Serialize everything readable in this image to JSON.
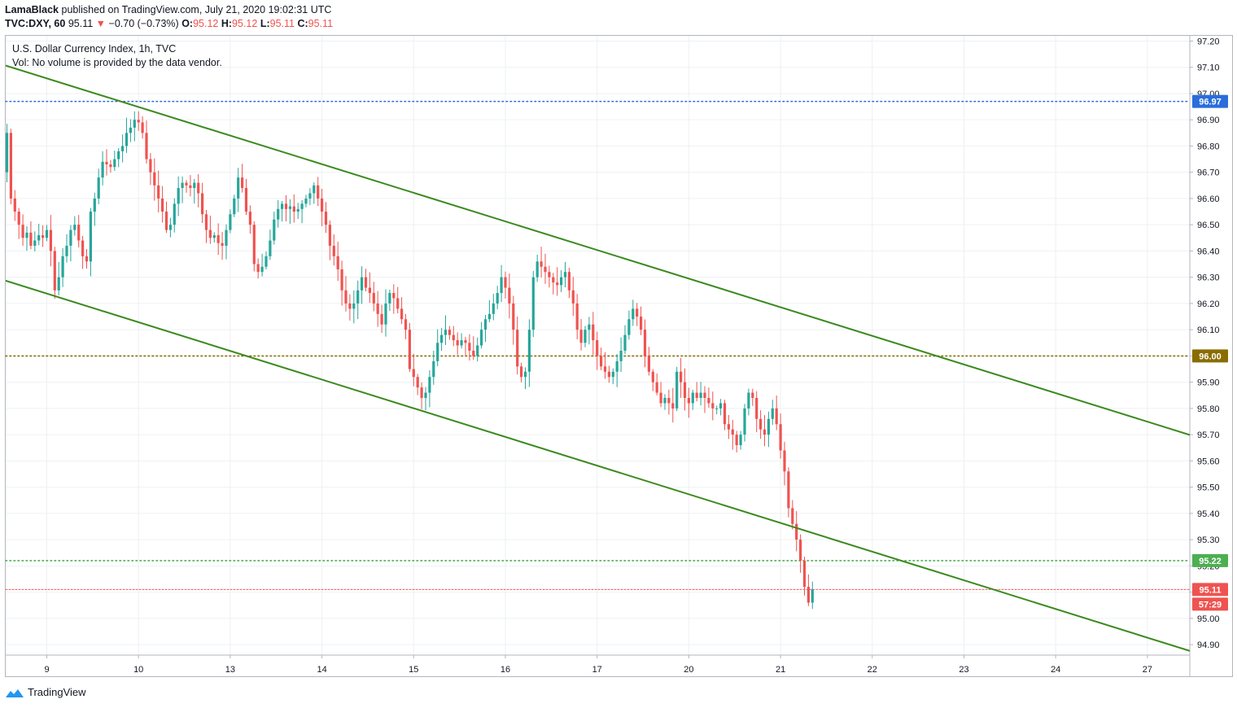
{
  "header": {
    "author": "LamaBlack",
    "published_text": "published on TradingView.com, July 21, 2020 19:02:31 UTC",
    "symbol": "TVC:DXY, 60",
    "last": "95.11",
    "change": "−0.70 (−0.73%)",
    "o_label": "O:",
    "o_value": "95.12",
    "h_label": "H:",
    "h_value": "95.12",
    "l_label": "L:",
    "l_value": "95.11",
    "c_label": "C:",
    "c_value": "95.11"
  },
  "legend": {
    "title": "U.S. Dollar Currency Index, 1h, TVC",
    "vol": "Vol: No volume is provided by the data vendor."
  },
  "footer": {
    "brand": "TradingView"
  },
  "colors": {
    "up": "#26a69a",
    "down": "#ef5350",
    "grid": "#eef0f3",
    "trend": "#3a8a1e",
    "blue_level": "#2a6ddb",
    "brown_level": "#8a6d00",
    "green_level": "#4caf50",
    "red_level": "#ef5350"
  },
  "chart_data": {
    "type": "candlestick",
    "title": "U.S. Dollar Currency Index, 1h, TVC",
    "ylim": [
      94.86,
      97.22
    ],
    "y_ticks": [
      {
        "value": 94.9,
        "label": "94.90"
      },
      {
        "value": 95.0,
        "label": "95.00"
      },
      {
        "value": 95.1,
        "label": "95.10"
      },
      {
        "value": 95.2,
        "label": "95.20"
      },
      {
        "value": 95.3,
        "label": "95.30"
      },
      {
        "value": 95.4,
        "label": "95.40"
      },
      {
        "value": 95.5,
        "label": "95.50"
      },
      {
        "value": 95.6,
        "label": "95.60"
      },
      {
        "value": 95.7,
        "label": "95.70"
      },
      {
        "value": 95.8,
        "label": "95.80"
      },
      {
        "value": 95.9,
        "label": "95.90"
      },
      {
        "value": 96.0,
        "label": "96.00"
      },
      {
        "value": 96.1,
        "label": "96.10"
      },
      {
        "value": 96.2,
        "label": "96.20"
      },
      {
        "value": 96.3,
        "label": "96.30"
      },
      {
        "value": 96.4,
        "label": "96.40"
      },
      {
        "value": 96.5,
        "label": "96.50"
      },
      {
        "value": 96.6,
        "label": "96.60"
      },
      {
        "value": 96.7,
        "label": "96.70"
      },
      {
        "value": 96.8,
        "label": "96.80"
      },
      {
        "value": 96.9,
        "label": "96.90"
      },
      {
        "value": 97.0,
        "label": "97.00"
      },
      {
        "value": 97.1,
        "label": "97.10"
      },
      {
        "value": 97.2,
        "label": "97.20"
      }
    ],
    "x_ticks": [
      {
        "bar": 10,
        "label": "9"
      },
      {
        "bar": 33,
        "label": "10"
      },
      {
        "bar": 56,
        "label": "13"
      },
      {
        "bar": 79,
        "label": "14"
      },
      {
        "bar": 102,
        "label": "15"
      },
      {
        "bar": 125,
        "label": "16"
      },
      {
        "bar": 148,
        "label": "17"
      },
      {
        "bar": 171,
        "label": "20"
      },
      {
        "bar": 194,
        "label": "21"
      },
      {
        "bar": 217,
        "label": "22"
      },
      {
        "bar": 240,
        "label": "23"
      },
      {
        "bar": 263,
        "label": "24"
      },
      {
        "bar": 286,
        "label": "27"
      }
    ],
    "candles_close": [
      96.85,
      96.6,
      96.55,
      96.5,
      96.45,
      96.47,
      96.42,
      96.44,
      96.46,
      96.45,
      96.48,
      96.4,
      96.25,
      96.3,
      96.38,
      96.42,
      96.48,
      96.5,
      96.44,
      96.38,
      96.36,
      96.55,
      96.6,
      96.68,
      96.74,
      96.73,
      96.72,
      96.75,
      96.78,
      96.8,
      96.85,
      96.87,
      96.9,
      96.89,
      96.85,
      96.75,
      96.7,
      96.65,
      96.6,
      96.55,
      96.48,
      96.5,
      96.58,
      96.64,
      96.66,
      96.65,
      96.64,
      96.66,
      96.62,
      96.54,
      96.48,
      96.45,
      96.46,
      96.43,
      96.42,
      96.48,
      96.54,
      96.6,
      96.68,
      96.64,
      96.55,
      96.5,
      96.35,
      96.32,
      96.34,
      96.38,
      96.44,
      96.52,
      96.56,
      96.58,
      96.56,
      96.57,
      96.55,
      96.56,
      96.58,
      96.6,
      96.62,
      96.65,
      96.6,
      96.55,
      96.5,
      96.42,
      96.38,
      96.33,
      96.25,
      96.2,
      96.18,
      96.2,
      96.25,
      96.3,
      96.26,
      96.24,
      96.2,
      96.16,
      96.12,
      96.2,
      96.24,
      96.22,
      96.18,
      96.14,
      96.1,
      95.95,
      95.92,
      95.88,
      95.84,
      95.86,
      95.92,
      95.98,
      96.05,
      96.08,
      96.1,
      96.08,
      96.06,
      96.04,
      96.06,
      96.05,
      96.02,
      96.0,
      96.04,
      96.1,
      96.14,
      96.16,
      96.2,
      96.24,
      96.3,
      96.26,
      96.2,
      96.1,
      95.96,
      95.92,
      95.94,
      96.1,
      96.3,
      96.36,
      96.34,
      96.32,
      96.3,
      96.28,
      96.27,
      96.3,
      96.32,
      96.25,
      96.2,
      96.1,
      96.05,
      96.1,
      96.12,
      96.06,
      96.0,
      95.96,
      95.94,
      95.92,
      95.94,
      95.98,
      96.02,
      96.08,
      96.14,
      96.18,
      96.15,
      96.1,
      96.0,
      95.94,
      95.9,
      95.86,
      95.82,
      95.84,
      95.82,
      95.8,
      95.94,
      95.9,
      95.84,
      95.82,
      95.86,
      95.84,
      95.86,
      95.84,
      95.82,
      95.8,
      95.8,
      95.82,
      95.74,
      95.72,
      95.7,
      95.66,
      95.7,
      95.8,
      95.86,
      95.84,
      95.76,
      95.72,
      95.7,
      95.76,
      95.8,
      95.74,
      95.64,
      95.56,
      95.42,
      95.36,
      95.3,
      95.22,
      95.12,
      95.06,
      95.11
    ],
    "levels": [
      {
        "value": 96.97,
        "label": "96.97",
        "color": "#2a6ddb"
      },
      {
        "value": 96.0,
        "label": "96.00",
        "color": "#8a6d00"
      },
      {
        "value": 95.22,
        "label": "95.22",
        "color": "#4caf50"
      },
      {
        "value": 95.11,
        "label": "95.11",
        "color": "#ef5350"
      }
    ],
    "countdown": "57:29",
    "channel": [
      {
        "name": "upper",
        "from_bar": -1,
        "from_value": 97.11,
        "to_bar": 307,
        "to_value": 95.65
      },
      {
        "name": "lower",
        "from_bar": -1,
        "from_value": 96.29,
        "to_bar": 300,
        "to_value": 94.86
      }
    ],
    "grid": true
  }
}
